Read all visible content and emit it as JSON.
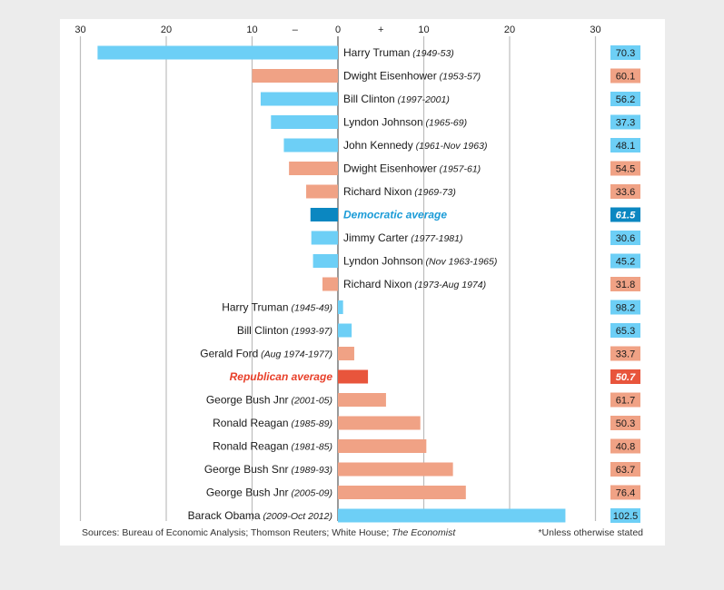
{
  "chart_data": {
    "type": "bar",
    "orientation": "horizontal",
    "xlim": [
      -30,
      30
    ],
    "x_ticks": [
      -30,
      -20,
      -10,
      0,
      10,
      20,
      30
    ],
    "x_tick_labels": [
      "30",
      "20",
      "10",
      "0",
      "10",
      "20",
      "30"
    ],
    "sign_labels": {
      "negative": "–",
      "positive": "+"
    },
    "grid": true,
    "colors": {
      "democratic": "#6dcff6",
      "republican": "#f0a285",
      "democratic_average": "#0b87c1",
      "republican_average": "#e8553c",
      "democratic_average_text": "#1a9bd7",
      "republican_average_text": "#e8402a"
    },
    "rows": [
      {
        "name": "Harry Truman",
        "period": "(1949-53)",
        "party": "D",
        "value": -28.0,
        "side_value": "70.3",
        "label_side": "right"
      },
      {
        "name": "Dwight Eisenhower",
        "period": "(1953-57)",
        "party": "R",
        "value": -10.0,
        "side_value": "60.1",
        "label_side": "right"
      },
      {
        "name": "Bill Clinton",
        "period": "(1997-2001)",
        "party": "D",
        "value": -9.0,
        "side_value": "56.2",
        "label_side": "right"
      },
      {
        "name": "Lyndon Johnson",
        "period": "(1965-69)",
        "party": "D",
        "value": -7.8,
        "side_value": "37.3",
        "label_side": "right"
      },
      {
        "name": "John Kennedy",
        "period": "(1961-Nov 1963)",
        "party": "D",
        "value": -6.3,
        "side_value": "48.1",
        "label_side": "right"
      },
      {
        "name": "Dwight Eisenhower",
        "period": "(1957-61)",
        "party": "R",
        "value": -5.7,
        "side_value": "54.5",
        "label_side": "right"
      },
      {
        "name": "Richard Nixon",
        "period": "(1969-73)",
        "party": "R",
        "value": -3.7,
        "side_value": "33.6",
        "label_side": "right"
      },
      {
        "name": "Democratic average",
        "period": "",
        "party": "D",
        "average": true,
        "value": -3.2,
        "side_value": "61.5",
        "label_side": "right"
      },
      {
        "name": "Jimmy Carter",
        "period": "(1977-1981)",
        "party": "D",
        "value": -3.1,
        "side_value": "30.6",
        "label_side": "right"
      },
      {
        "name": "Lyndon Johnson",
        "period": "(Nov 1963-1965)",
        "party": "D",
        "value": -2.9,
        "side_value": "45.2",
        "label_side": "right"
      },
      {
        "name": "Richard Nixon",
        "period": "(1973-Aug 1974)",
        "party": "R",
        "value": -1.8,
        "side_value": "31.8",
        "label_side": "right"
      },
      {
        "name": "Harry Truman",
        "period": "(1945-49)",
        "party": "D",
        "value": 0.6,
        "side_value": "98.2",
        "label_side": "left"
      },
      {
        "name": "Bill Clinton",
        "period": "(1993-97)",
        "party": "D",
        "value": 1.6,
        "side_value": "65.3",
        "label_side": "left"
      },
      {
        "name": "Gerald Ford",
        "period": "(Aug 1974-1977)",
        "party": "R",
        "value": 1.9,
        "side_value": "33.7",
        "label_side": "left"
      },
      {
        "name": "Republican average",
        "period": "",
        "party": "R",
        "average": true,
        "value": 3.5,
        "side_value": "50.7",
        "label_side": "left"
      },
      {
        "name": "George Bush Jnr",
        "period": "(2001-05)",
        "party": "R",
        "value": 5.6,
        "side_value": "61.7",
        "label_side": "left"
      },
      {
        "name": "Ronald Reagan",
        "period": "(1985-89)",
        "party": "R",
        "value": 9.6,
        "side_value": "50.3",
        "label_side": "left"
      },
      {
        "name": "Ronald Reagan",
        "period": "(1981-85)",
        "party": "R",
        "value": 10.3,
        "side_value": "40.8",
        "label_side": "left"
      },
      {
        "name": "George Bush Snr",
        "period": "(1989-93)",
        "party": "R",
        "value": 13.4,
        "side_value": "63.7",
        "label_side": "left"
      },
      {
        "name": "George Bush Jnr",
        "period": "(2005-09)",
        "party": "R",
        "value": 14.9,
        "side_value": "76.4",
        "label_side": "left"
      },
      {
        "name": "Barack Obama",
        "period": "(2009-Oct 2012)",
        "party": "D",
        "value": 26.5,
        "side_value": "102.5",
        "label_side": "left"
      }
    ]
  },
  "footer": {
    "sources_prefix": "Sources: Bureau of Economic Analysis; Thomson Reuters; White House; ",
    "sources_italic": "The Economist",
    "note": "*Unless otherwise stated"
  }
}
